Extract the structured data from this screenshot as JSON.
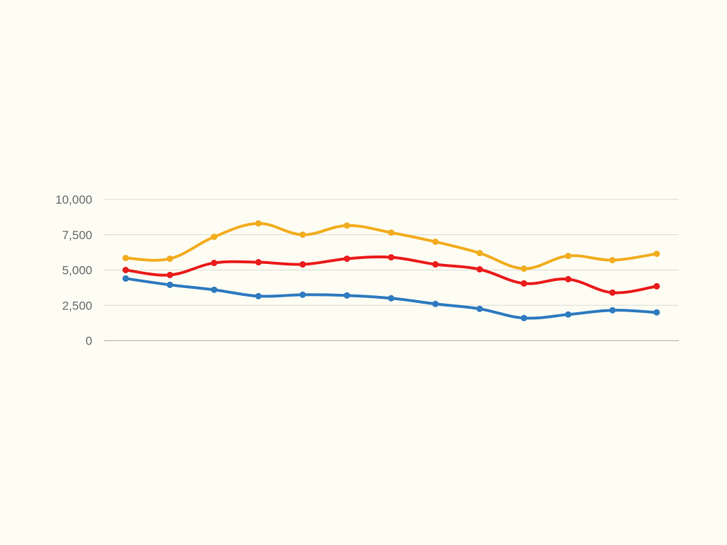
{
  "chart_data": {
    "type": "line",
    "title": "",
    "xlabel": "",
    "ylabel": "",
    "ylim": [
      0,
      10000
    ],
    "y_ticks": [
      {
        "value": 0,
        "label": "0"
      },
      {
        "value": 2500,
        "label": "2,500"
      },
      {
        "value": 5000,
        "label": "5,000"
      },
      {
        "value": 7500,
        "label": "7,500"
      },
      {
        "value": 10000,
        "label": "10,000"
      }
    ],
    "grid": true,
    "legend": "none",
    "smooth": true,
    "x": [
      1,
      2,
      3,
      4,
      5,
      6,
      7,
      8,
      9,
      10,
      11,
      12,
      13
    ],
    "series": [
      {
        "color": "#f2ad1f",
        "values": [
          5850,
          5800,
          7350,
          8300,
          7500,
          8150,
          7650,
          7000,
          6200,
          5100,
          6000,
          5700,
          6150
        ]
      },
      {
        "color": "#ea1c1c",
        "values": [
          5000,
          4650,
          5500,
          5550,
          5400,
          5800,
          5900,
          5400,
          5050,
          4050,
          4350,
          3400,
          3850
        ]
      },
      {
        "color": "#2f7bc0",
        "values": [
          4400,
          3950,
          3600,
          3150,
          3250,
          3200,
          3000,
          2600,
          2250,
          1600,
          1850,
          2150,
          2000
        ]
      }
    ]
  }
}
